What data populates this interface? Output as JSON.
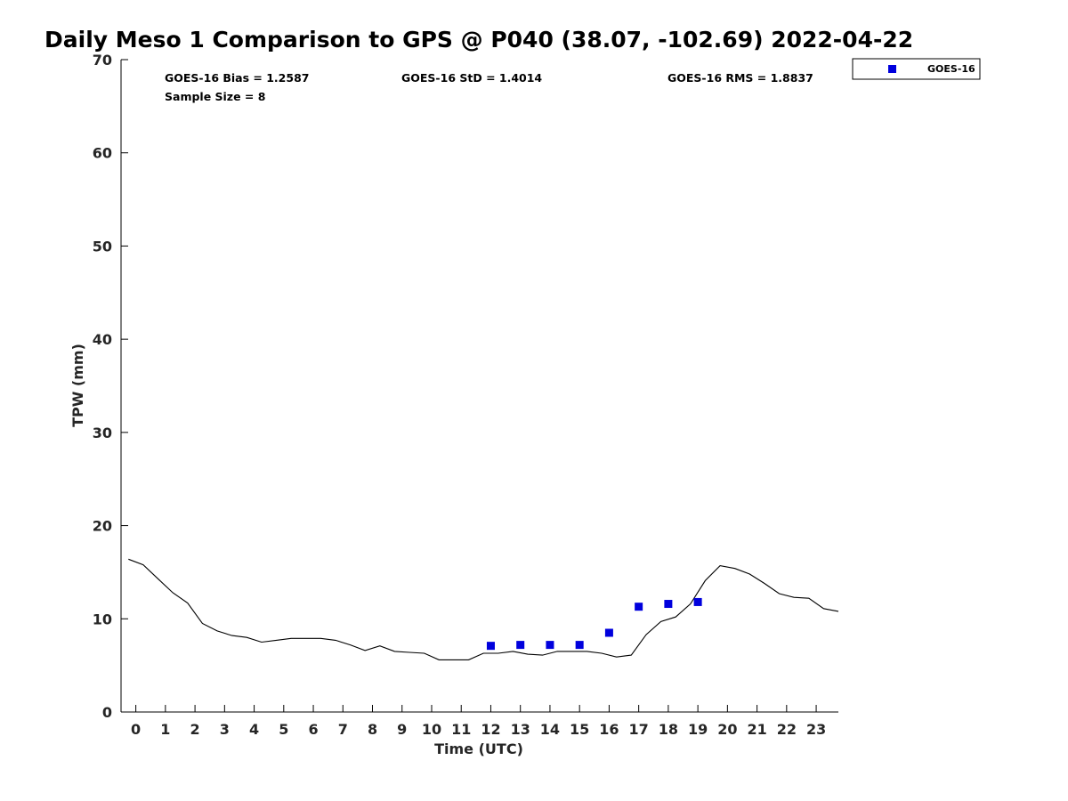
{
  "chart_data": {
    "type": "scatter",
    "title": "Daily Meso 1 Comparison to GPS @ P040 (38.07, -102.69) 2022-04-22",
    "xlabel": "Time (UTC)",
    "ylabel": "TPW (mm)",
    "xlim": [
      -0.5,
      23.75
    ],
    "ylim": [
      0,
      70
    ],
    "x_ticks": [
      0,
      1,
      2,
      3,
      4,
      5,
      6,
      7,
      8,
      9,
      10,
      11,
      12,
      13,
      14,
      15,
      16,
      17,
      18,
      19,
      20,
      21,
      22,
      23
    ],
    "y_ticks": [
      0,
      10,
      20,
      30,
      40,
      50,
      60,
      70
    ],
    "grid": false,
    "legend_position": "top-right-outside",
    "stats": {
      "bias": "GOES-16 Bias = 1.2587",
      "std": "GOES-16 StD = 1.4014",
      "rms": "GOES-16 RMS = 1.8837",
      "sample_size": "Sample Size = 8"
    },
    "series": [
      {
        "name": "GOES-16",
        "kind": "scatter",
        "color": "#0000dd",
        "marker": "square",
        "x": [
          12,
          13,
          14,
          15,
          16,
          17,
          18,
          19
        ],
        "y": [
          7.1,
          7.2,
          7.2,
          7.2,
          8.5,
          11.3,
          11.6,
          11.8
        ]
      },
      {
        "kind": "line",
        "color": "#000000",
        "x": [
          -0.25,
          0.25,
          0.75,
          1.25,
          1.75,
          2.25,
          2.75,
          3.25,
          3.75,
          4.25,
          4.75,
          5.25,
          5.75,
          6.25,
          6.75,
          7.25,
          7.75,
          8.25,
          8.75,
          9.25,
          9.75,
          10.25,
          10.75,
          11.25,
          11.75,
          12.25,
          12.75,
          13.25,
          13.75,
          14.25,
          14.75,
          15.25,
          15.75,
          16.25,
          16.75,
          17.25,
          17.75,
          18.25,
          18.75,
          19.25,
          19.75,
          20.25,
          20.75,
          21.25,
          21.75,
          22.25,
          22.75,
          23.25,
          23.75
        ],
        "y": [
          16.4,
          15.8,
          14.3,
          12.8,
          11.7,
          9.5,
          8.7,
          8.2,
          8.0,
          7.5,
          7.7,
          7.9,
          7.9,
          7.9,
          7.7,
          7.2,
          6.6,
          7.1,
          6.5,
          6.4,
          6.3,
          5.6,
          5.6,
          5.6,
          6.3,
          6.3,
          6.5,
          6.2,
          6.1,
          6.5,
          6.5,
          6.5,
          6.3,
          5.9,
          6.1,
          8.3,
          9.7,
          10.2,
          11.6,
          14.1,
          15.7,
          15.4,
          14.8,
          13.8,
          12.7,
          12.3,
          12.2,
          11.1,
          10.8
        ]
      }
    ]
  }
}
